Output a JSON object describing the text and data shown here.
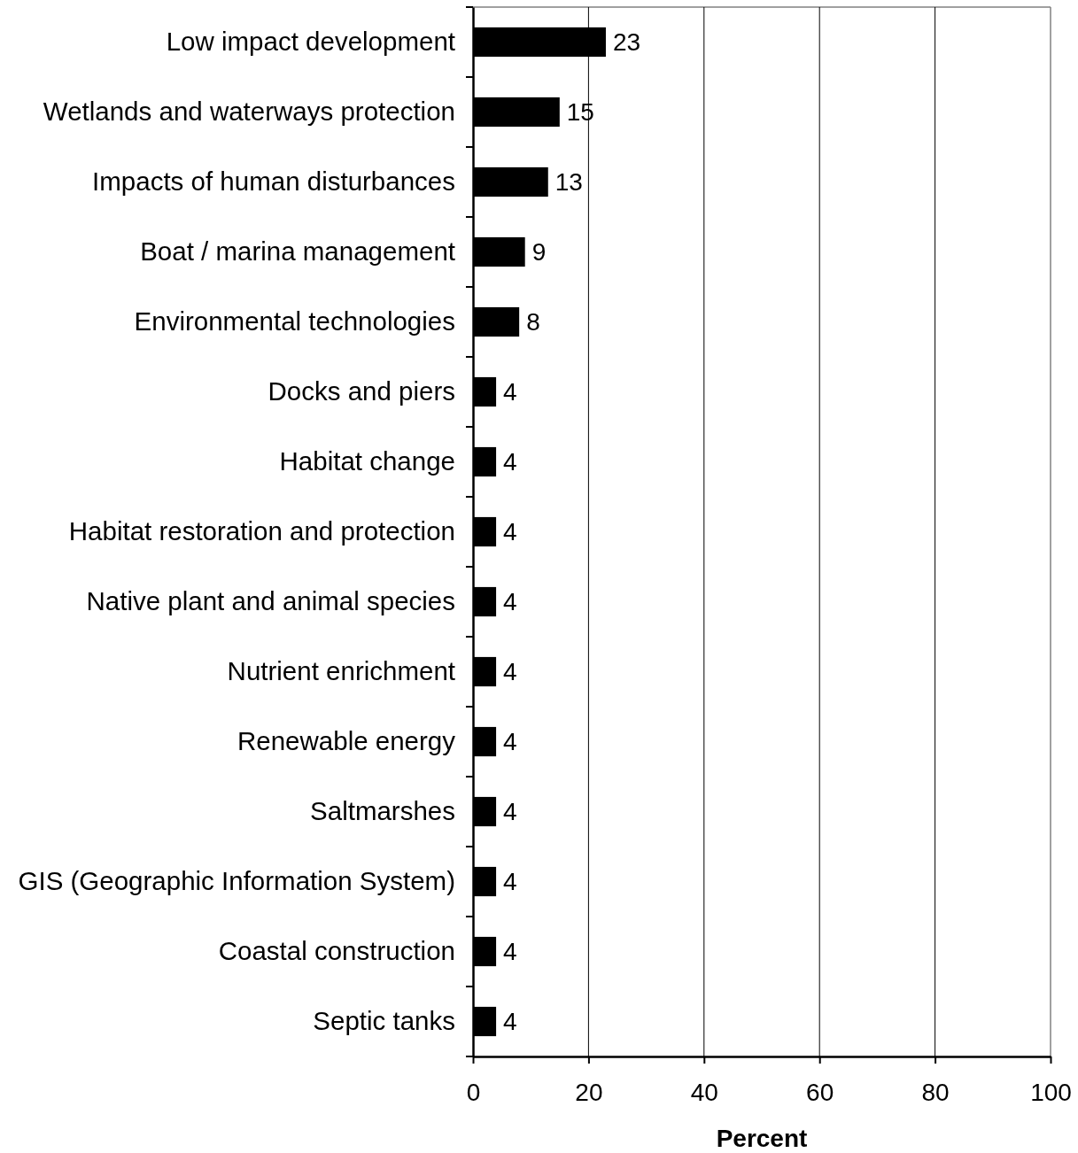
{
  "chart_data": {
    "type": "bar",
    "orientation": "horizontal",
    "categories": [
      "Low impact development",
      "Wetlands and waterways protection",
      "Impacts of human disturbances",
      "Boat / marina management",
      "Environmental technologies",
      "Docks and piers",
      "Habitat change",
      "Habitat restoration and protection",
      "Native plant and animal species",
      "Nutrient enrichment",
      "Renewable energy",
      "Saltmarshes",
      "GIS (Geographic Information System)",
      "Coastal construction",
      "Septic tanks"
    ],
    "values": [
      23,
      15,
      13,
      9,
      8,
      4,
      4,
      4,
      4,
      4,
      4,
      4,
      4,
      4,
      4
    ],
    "color": "#000000",
    "xlim": [
      0,
      100
    ],
    "xticks": [
      0,
      20,
      40,
      60,
      80,
      100
    ],
    "xlabel": "Percent",
    "grid": "x",
    "data_labels": true
  }
}
